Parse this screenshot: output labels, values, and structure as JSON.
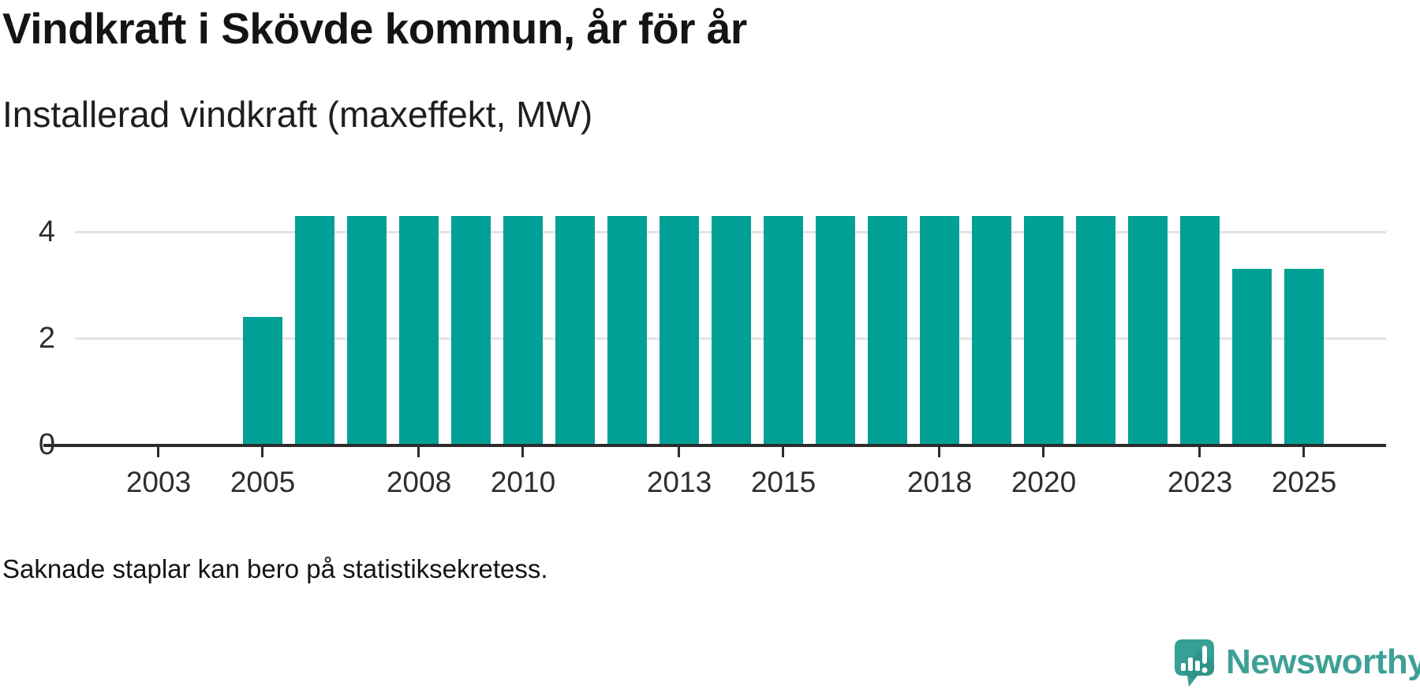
{
  "header": {
    "title": "Vindkraft i Skövde kommun, år för år",
    "subtitle": "Installerad vindkraft (maxeffekt, MW)"
  },
  "footer": {
    "note": "Saknade staplar kan bero på statistiksekretess.",
    "brand": "Newsworthy"
  },
  "colors": {
    "bar": "#00a096",
    "axis": "#2c2c2c",
    "grid": "#e3e3e3",
    "tick_label": "#2e2e2e",
    "logo_text": "#3ea096",
    "logo_bubble": "#35a093",
    "logo_shadow": "#2c8a7f"
  },
  "chart_data": {
    "type": "bar",
    "title": "Vindkraft i Skövde kommun, år för år",
    "subtitle": "Installerad vindkraft (maxeffekt, MW)",
    "xlabel": "",
    "ylabel": "Installerad vindkraft (maxeffekt, MW)",
    "unit": "MW",
    "categories": [
      2002,
      2003,
      2004,
      2005,
      2006,
      2007,
      2008,
      2009,
      2010,
      2011,
      2012,
      2013,
      2014,
      2015,
      2016,
      2017,
      2018,
      2019,
      2020,
      2021,
      2022,
      2023,
      2024,
      2025
    ],
    "values": [
      null,
      null,
      null,
      2.4,
      4.3,
      4.3,
      4.3,
      4.3,
      4.3,
      4.3,
      4.3,
      4.3,
      4.3,
      4.3,
      4.3,
      4.3,
      4.3,
      4.3,
      4.3,
      4.3,
      4.3,
      4.3,
      3.3,
      3.3
    ],
    "missing_years": [
      2002,
      2003,
      2004
    ],
    "yticks": [
      0,
      2,
      4
    ],
    "xtick_labels": [
      2003,
      2005,
      2008,
      2010,
      2013,
      2015,
      2018,
      2020,
      2023,
      2025
    ],
    "ylim": [
      0,
      4.5
    ],
    "grid": "horizontal-only",
    "legend_position": "none",
    "bar_color": "#00a096",
    "annotation": "Saknade staplar kan bero på statistiksekretess."
  }
}
